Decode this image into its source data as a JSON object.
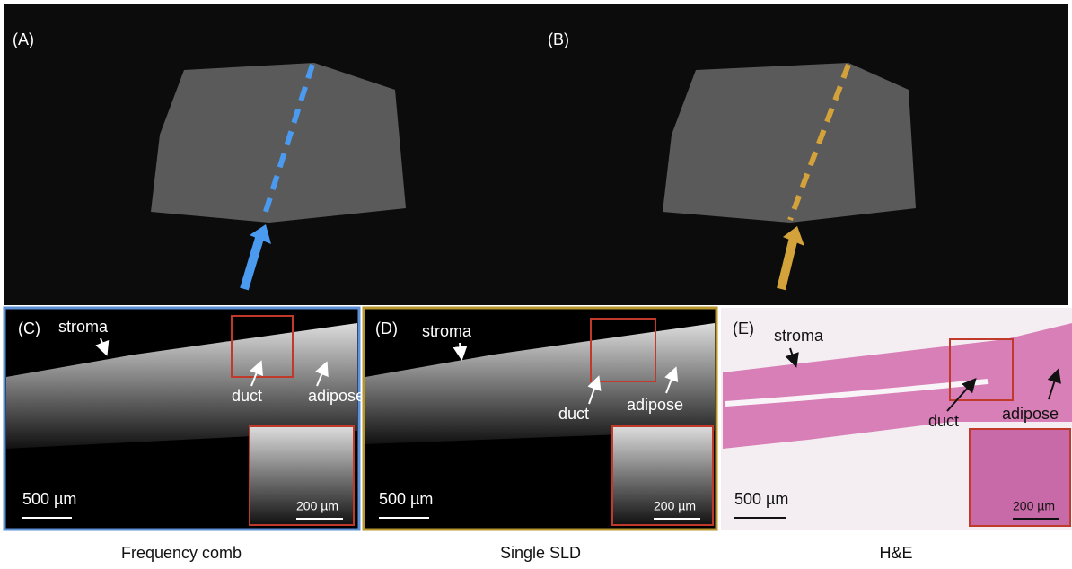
{
  "panels": [
    {
      "label": "(A)"
    },
    {
      "label": "(B)"
    },
    {
      "label": "(C)",
      "annotations": {
        "stroma": "stroma",
        "duct": "duct",
        "adipose": "adipose"
      },
      "scale_bar": "500 µm",
      "inset_scale_bar": "200 µm",
      "caption": "Frequency comb"
    },
    {
      "label": "(D)",
      "annotations": {
        "stroma": "stroma",
        "duct": "duct",
        "adipose": "adipose"
      },
      "scale_bar": "500 µm",
      "inset_scale_bar": "200 µm",
      "caption": "Single SLD"
    },
    {
      "label": "(E)",
      "annotations": {
        "stroma": "stroma",
        "duct": "duct",
        "adipose": "adipose"
      },
      "scale_bar": "500 µm",
      "inset_scale_bar": "200 µm",
      "caption": "H&E"
    }
  ]
}
